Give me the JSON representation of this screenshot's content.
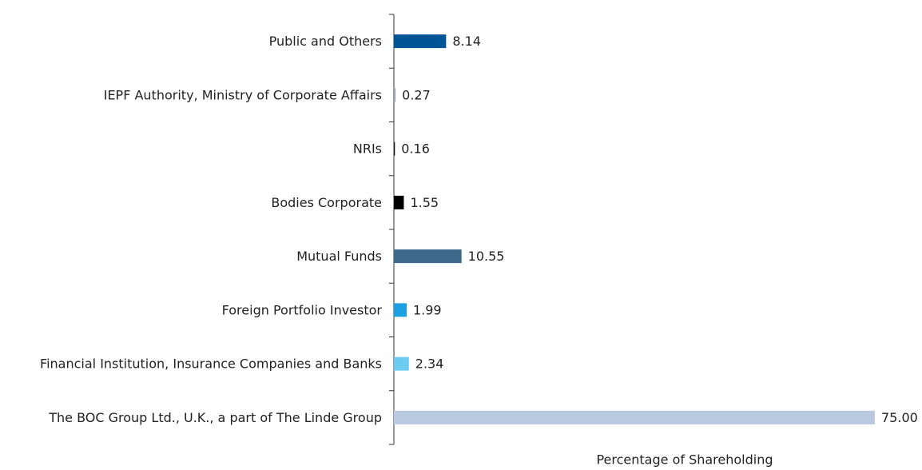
{
  "chart_data": {
    "type": "barh",
    "categories": [
      "Public and Others",
      "IEPF Authority, Ministry of Corporate Affairs",
      "NRIs",
      "Bodies Corporate",
      "Mutual Funds",
      "Foreign Portfolio Investor",
      "Financial Institution, Insurance Companies and Banks",
      "The BOC Group Ltd., U.K., a part of The Linde Group"
    ],
    "values": [
      8.14,
      0.27,
      0.16,
      1.55,
      10.55,
      1.99,
      2.34,
      75
    ],
    "value_labels": [
      "8.14",
      "0.27",
      "0.16",
      "1.55",
      "10.55",
      "1.99",
      "2.34",
      "75.00"
    ],
    "colors": [
      "#005596",
      "#a3a9b2",
      "#111111",
      "#000000",
      "#3d6a8a",
      "#1ba0e2",
      "#6ccbf0",
      "#b9c9e0"
    ],
    "xlim": [
      0,
      75
    ],
    "xlabel": "Percentage of Shareholding"
  }
}
